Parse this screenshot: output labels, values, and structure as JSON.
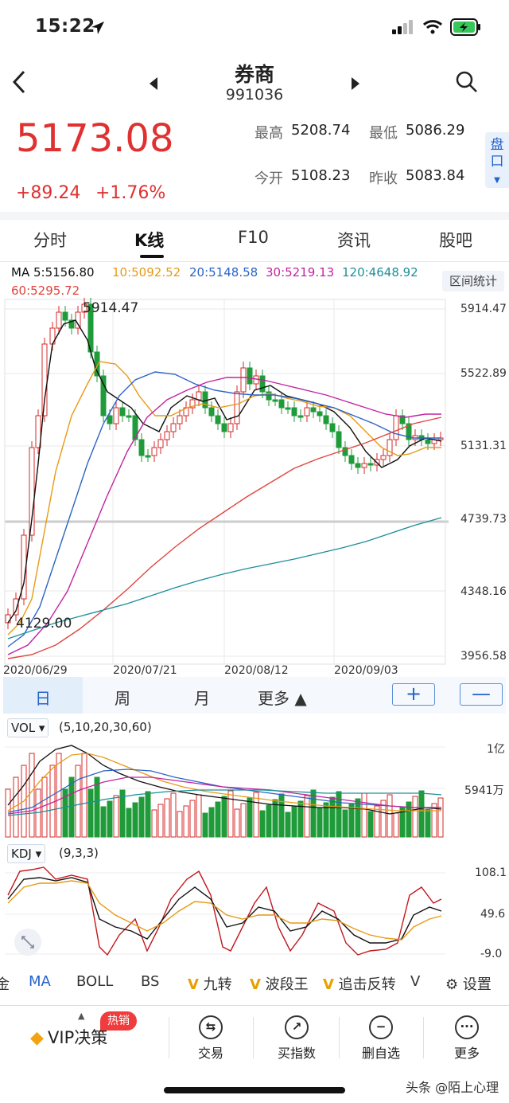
{
  "status": {
    "time": "15:22"
  },
  "header": {
    "title": "券商",
    "code": "991036"
  },
  "quote": {
    "price": "5173.08",
    "change": "+89.24",
    "change_pct": "+1.76%",
    "high_label": "最高",
    "high": "5208.74",
    "low_label": "最低",
    "low": "5086.29",
    "open_label": "今开",
    "open": "5108.23",
    "prev_close_label": "昨收",
    "prev_close": "5083.84",
    "pankou": "盘口"
  },
  "tabs": [
    {
      "label": "分时"
    },
    {
      "label": "K线"
    },
    {
      "label": "F10"
    },
    {
      "label": "资讯"
    },
    {
      "label": "股吧"
    }
  ],
  "ma": {
    "ma5": "MA 5:5156.80",
    "ma10": "10:5092.52",
    "ma20": "20:5148.58",
    "ma30": "30:5219.13",
    "ma120": "120:4648.92",
    "ma60": "60:5295.72",
    "range_button": "区间统计",
    "colors": {
      "ma5": "#111111",
      "ma10": "#e89a16",
      "ma20": "#2b64c8",
      "ma30": "#c2249f",
      "ma120": "#1d8f9a",
      "ma60": "#e0453f"
    }
  },
  "kline": {
    "y_ticks": [
      "5914.47",
      "5522.89",
      "5131.31",
      "4739.73",
      "4348.16",
      "3956.58"
    ],
    "x_ticks": [
      "2020/06/29",
      "2020/07/21",
      "2020/08/12",
      "2020/09/03"
    ],
    "high_mark": "5914.47",
    "low_mark": "4129.00"
  },
  "periods": {
    "day": "日",
    "week": "周",
    "month": "月",
    "more": "更多 ▲",
    "zoom_in": "+",
    "zoom_out": "—"
  },
  "vol": {
    "label": "VOL ▾",
    "params": "(5,10,20,30,60)",
    "ticks": [
      "1亿",
      "5941万"
    ]
  },
  "kdj": {
    "label": "KDJ ▾",
    "params": "(9,3,3)",
    "ticks": [
      "108.1",
      "49.6",
      "-9.0"
    ]
  },
  "tools": {
    "partial": "金",
    "ma": "MA",
    "boll": "BOLL",
    "bs": "BS",
    "jiuzhuan": "九转",
    "boduanwang": "波段王",
    "zhuiji": "追击反转",
    "v": "V",
    "settings": "设置"
  },
  "nav": {
    "vip": "VIP决策",
    "hot": "热销",
    "trade": "交易",
    "buy_index": "买指数",
    "del_fav": "删自选",
    "more": "更多"
  },
  "watermark": "头条 @陌上心理"
}
